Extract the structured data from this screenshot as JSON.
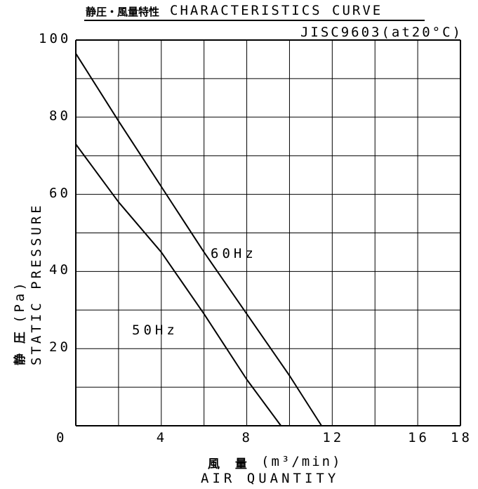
{
  "chart_data": {
    "type": "line",
    "title_jp": "静圧・風量特性",
    "title": "CHARACTERISTICS CURVE",
    "standard": "JISC9603(at20°C)",
    "ylabel_jp": "静 圧",
    "ylabel_unit": "(Pa)",
    "ylabel": "STATIC PRESSURE",
    "xlabel_jp": "風 量",
    "xlabel_unit": "(m³/min)",
    "xlabel": "AIR QUANTITY",
    "xlim": [
      0,
      18
    ],
    "ylim": [
      0,
      100
    ],
    "xticks": [
      "0",
      "4",
      "8",
      "12",
      "16",
      "18"
    ],
    "xtick_values": [
      0,
      4,
      8,
      12,
      16,
      18
    ],
    "yticks": [
      "20",
      "40",
      "60",
      "80",
      "100"
    ],
    "ytick_values": [
      20,
      40,
      60,
      80,
      100
    ],
    "grid": true,
    "grid_x_step": 2,
    "grid_y_step": 10,
    "series": [
      {
        "name": "60Hz",
        "x": [
          0,
          2,
          4,
          6,
          8,
          10,
          11.5
        ],
        "y": [
          96.5,
          79,
          62,
          45,
          29,
          13,
          0
        ]
      },
      {
        "name": "50Hz",
        "x": [
          0,
          2,
          4,
          5,
          6,
          8,
          9.6
        ],
        "y": [
          73,
          58,
          45,
          37,
          29,
          12,
          0
        ]
      }
    ]
  }
}
